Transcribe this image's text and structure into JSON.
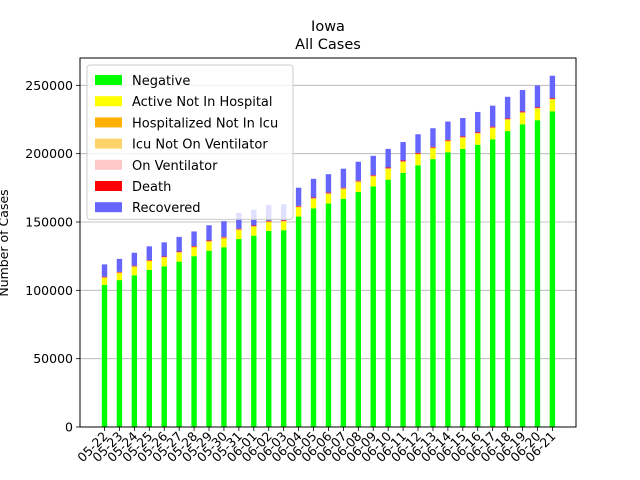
{
  "chart_data": {
    "type": "bar",
    "stacked": true,
    "title": "Iowa",
    "subtitle": "All Cases",
    "xlabel": "",
    "ylabel": "Number of Cases",
    "ylim": [
      0,
      270000
    ],
    "yticks": [
      0,
      50000,
      100000,
      150000,
      200000,
      250000
    ],
    "grid": "horizontal",
    "legend_position": "top-left",
    "categories": [
      "05-22",
      "05-23",
      "05-24",
      "05-25",
      "05-26",
      "05-27",
      "05-28",
      "05-29",
      "05-30",
      "05-31",
      "06-01",
      "06-02",
      "06-03",
      "06-04",
      "06-05",
      "06-06",
      "06-07",
      "06-08",
      "06-09",
      "06-10",
      "06-11",
      "06-12",
      "06-13",
      "06-14",
      "06-15",
      "06-16",
      "06-17",
      "06-18",
      "06-19",
      "06-20",
      "06-21"
    ],
    "series": [
      {
        "name": "Negative",
        "color": "#00ff00",
        "values": [
          104000,
          107500,
          111000,
          115000,
          117500,
          121000,
          125000,
          129000,
          131500,
          137500,
          140000,
          143500,
          144000,
          154000,
          160000,
          163500,
          167000,
          172000,
          176000,
          181000,
          186000,
          191500,
          196000,
          201000,
          203500,
          206500,
          210500,
          216500,
          221500,
          224500,
          231000
        ]
      },
      {
        "name": "Active Not In Hospital",
        "color": "#ffff00",
        "values": [
          5000,
          5000,
          6000,
          6200,
          6300,
          6400,
          6300,
          6400,
          6500,
          6500,
          6400,
          6300,
          6200,
          6700,
          6900,
          6900,
          7000,
          7100,
          7200,
          7700,
          7800,
          7900,
          7800,
          7900,
          8000,
          8000,
          8100,
          8200,
          8200,
          8300,
          8500
        ]
      },
      {
        "name": "Hospitalized Not In Icu",
        "color": "#ffb000",
        "values": [
          400,
          400,
          400,
          400,
          400,
          400,
          400,
          400,
          400,
          400,
          400,
          400,
          400,
          400,
          400,
          400,
          400,
          400,
          400,
          400,
          400,
          400,
          400,
          400,
          400,
          400,
          400,
          400,
          400,
          400,
          400
        ]
      },
      {
        "name": "Icu Not On Ventilator",
        "color": "#ffd36b",
        "values": [
          100,
          100,
          100,
          100,
          100,
          100,
          100,
          100,
          100,
          100,
          100,
          100,
          100,
          100,
          100,
          100,
          100,
          100,
          100,
          100,
          100,
          100,
          100,
          100,
          100,
          100,
          100,
          100,
          100,
          100,
          100
        ]
      },
      {
        "name": "On Ventilator",
        "color": "#ffc8c8",
        "values": [
          100,
          100,
          100,
          100,
          100,
          100,
          100,
          100,
          100,
          100,
          100,
          100,
          100,
          100,
          100,
          100,
          100,
          100,
          100,
          100,
          100,
          100,
          100,
          100,
          100,
          100,
          100,
          100,
          100,
          100,
          100
        ]
      },
      {
        "name": "Death",
        "color": "#ff0000",
        "values": [
          400,
          400,
          400,
          400,
          400,
          400,
          500,
          500,
          500,
          500,
          500,
          500,
          500,
          500,
          500,
          500,
          500,
          500,
          500,
          600,
          600,
          600,
          600,
          600,
          600,
          600,
          600,
          600,
          600,
          600,
          600
        ]
      },
      {
        "name": "Recovered",
        "color": "#6666ff",
        "values": [
          9000,
          9500,
          9500,
          10000,
          10300,
          10700,
          10700,
          11100,
          11500,
          11500,
          11500,
          11600,
          11700,
          13300,
          13600,
          13500,
          13900,
          13900,
          14100,
          13600,
          13500,
          13600,
          13600,
          13400,
          13400,
          14800,
          15300,
          15700,
          15700,
          15900,
          16300
        ]
      }
    ]
  }
}
